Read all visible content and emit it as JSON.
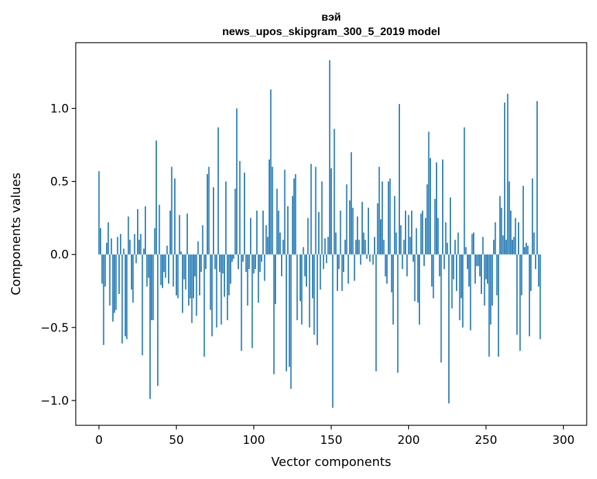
{
  "chart_data": {
    "type": "bar",
    "title": "вэй",
    "subtitle": "news_upos_skipgram_300_5_2019 model",
    "xlabel": "Vector components",
    "ylabel": "Components values",
    "xlim": [
      -15,
      315
    ],
    "ylim": [
      -1.17,
      1.45
    ],
    "xticks": [
      0,
      50,
      100,
      150,
      200,
      250,
      300
    ],
    "xtick_labels": [
      "0",
      "50",
      "100",
      "150",
      "200",
      "250",
      "300"
    ],
    "yticks": [
      -1.0,
      -0.5,
      0.0,
      0.5,
      1.0
    ],
    "ytick_labels": [
      "−1.0",
      "−0.5",
      "0.0",
      "0.5",
      "1.0"
    ],
    "grid": false,
    "bar_color": "#1f77b4",
    "values": [
      0.57,
      0.18,
      -0.2,
      -0.62,
      -0.22,
      0.08,
      0.22,
      -0.35,
      0.11,
      -0.46,
      -0.4,
      -0.38,
      0.12,
      -0.27,
      0.14,
      -0.61,
      0.04,
      -0.56,
      -0.58,
      0.26,
      0.1,
      -0.24,
      -0.33,
      0.14,
      -0.06,
      0.31,
      0.1,
      0.14,
      -0.69,
      0.04,
      0.33,
      -0.22,
      -0.16,
      -0.99,
      -0.45,
      -0.45,
      0.18,
      0.78,
      -0.9,
      0.34,
      -0.21,
      -0.23,
      -0.12,
      -0.16,
      0.06,
      -0.2,
      0.3,
      0.6,
      -0.22,
      0.52,
      -0.28,
      -0.3,
      0.27,
      0.02,
      -0.4,
      -0.17,
      -0.24,
      0.28,
      -0.35,
      -0.3,
      -0.47,
      -0.3,
      -0.15,
      -0.42,
      0.09,
      -0.28,
      -0.12,
      0.2,
      -0.7,
      -0.1,
      0.55,
      0.6,
      -0.38,
      -0.56,
      0.46,
      -0.1,
      -0.5,
      0.87,
      -0.12,
      -0.48,
      -0.13,
      -0.29,
      0.5,
      -0.45,
      -0.28,
      -0.2,
      -0.05,
      -0.03,
      0.45,
      1.0,
      -0.1,
      0.64,
      -0.66,
      -0.05,
      0.56,
      -0.12,
      -0.35,
      -0.1,
      0.25,
      -0.64,
      -0.13,
      -0.1,
      0.3,
      -0.33,
      -0.12,
      -0.05,
      0.3,
      -0.18,
      0.2,
      0.12,
      0.65,
      1.13,
      0.6,
      -0.82,
      -0.34,
      0.45,
      0.3,
      0.15,
      -0.15,
      0.1,
      0.58,
      -0.8,
      0.33,
      -0.77,
      -0.92,
      0.4,
      0.52,
      0.55,
      -0.45,
      0.0,
      -0.32,
      -0.48,
      0.05,
      -0.15,
      -0.22,
      0.25,
      -0.5,
      0.62,
      -0.3,
      -0.55,
      0.6,
      -0.62,
      0.29,
      -0.24,
      0.5,
      -0.1,
      0.11,
      -0.06,
      0.12,
      1.33,
      0.59,
      -1.05,
      0.86,
      0.15,
      -0.25,
      -0.1,
      0.3,
      -0.25,
      -0.12,
      0.1,
      0.48,
      -0.2,
      0.37,
      0.7,
      0.32,
      -0.18,
      0.1,
      0.26,
      0.1,
      -0.07,
      0.36,
      0.15,
      0.1,
      -0.03,
      0.32,
      -0.05,
      0.0,
      -0.07,
      0.12,
      -0.8,
      0.35,
      0.6,
      0.24,
      0.5,
      0.1,
      -0.15,
      -0.2,
      0.5,
      0.52,
      -0.26,
      -0.48,
      0.4,
      0.15,
      -0.81,
      1.03,
      0.2,
      -0.1,
      0.1,
      0.3,
      -0.15,
      0.27,
      0.12,
      0.3,
      -0.05,
      -0.32,
      0.18,
      -0.33,
      -0.48,
      0.28,
      0.3,
      -0.08,
      0.25,
      0.48,
      0.84,
      0.66,
      -0.22,
      -0.3,
      0.38,
      0.63,
      0.25,
      -0.15,
      -0.74,
      0.65,
      -0.1,
      0.22,
      0.08,
      -1.02,
      0.39,
      -0.37,
      -0.17,
      0.1,
      -0.25,
      0.15,
      -0.45,
      -0.3,
      -0.5,
      0.87,
      0.05,
      -0.1,
      -0.22,
      -0.52,
      0.14,
      0.15,
      -0.2,
      -0.08,
      -0.08,
      -0.15,
      -0.27,
      0.12,
      -0.35,
      -0.17,
      -0.2,
      -0.7,
      -0.48,
      -0.35,
      0.1,
      0.22,
      -0.28,
      -0.7,
      0.4,
      0.32,
      0.13,
      1.04,
      0.1,
      1.1,
      0.5,
      0.3,
      0.1,
      0.12,
      0.25,
      -0.55,
      0.22,
      -0.66,
      -0.28,
      0.47,
      0.05,
      0.08,
      0.06,
      -0.56,
      -0.25,
      0.52,
      0.15,
      -0.1,
      1.05,
      -0.22,
      -0.58
    ]
  }
}
